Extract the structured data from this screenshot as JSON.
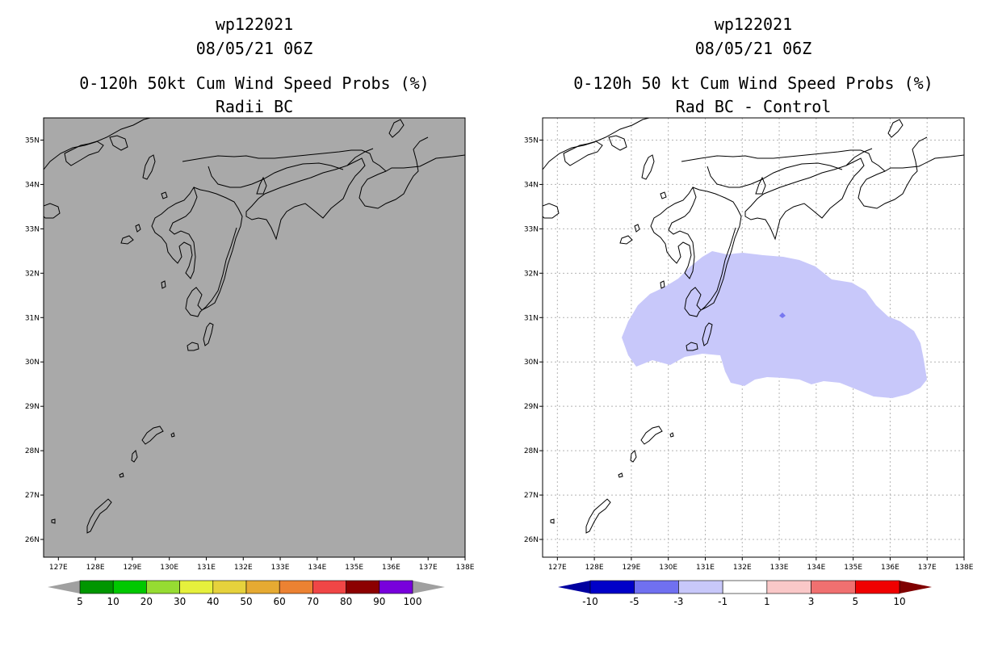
{
  "left_panel": {
    "storm_id": "wp122021",
    "datetime": "08/05/21 06Z",
    "title": "0-120h 50kt Cum Wind Speed Probs (%)",
    "subtitle": "Radii BC",
    "background_color": "#a9a9a9"
  },
  "right_panel": {
    "storm_id": "wp122021",
    "datetime": "08/05/21 06Z",
    "title": "0-120h 50 kt Cum Wind Speed Probs (%)",
    "subtitle": "Rad BC - Control",
    "background_color": "#ffffff",
    "shaded_region_color": "#c8c8fa",
    "shaded_region_label": "-3 to -1",
    "max_point_color": "#7878f0"
  },
  "map": {
    "lon_range": [
      126.6,
      138.0
    ],
    "lat_range": [
      25.6,
      35.5
    ],
    "lon_labels": [
      "127E",
      "128E",
      "129E",
      "130E",
      "131E",
      "132E",
      "133E",
      "134E",
      "135E",
      "136E",
      "137E",
      "138E"
    ],
    "lat_labels": [
      "35N",
      "34N",
      "33N",
      "32N",
      "31N",
      "30N",
      "29N",
      "28N",
      "27N",
      "26N"
    ]
  },
  "left_colorbar": {
    "labels": [
      "5",
      "10",
      "20",
      "30",
      "40",
      "50",
      "60",
      "70",
      "80",
      "90",
      "100"
    ],
    "colors": [
      "#009600",
      "#00c800",
      "#96dc32",
      "#e6f03c",
      "#e6d23c",
      "#e6aa32",
      "#ec8232",
      "#f04646",
      "#8c0000",
      "#7800dc"
    ],
    "end_color": "#a0a0a0"
  },
  "right_colorbar": {
    "labels": [
      "-10",
      "-5",
      "-3",
      "-1",
      "1",
      "3",
      "5",
      "10"
    ],
    "colors": [
      "#0000c8",
      "#7070f0",
      "#c8c8fa",
      "#ffffff",
      "#fac8c8",
      "#f07070",
      "#f00000"
    ],
    "low_end_color": "#0000a0",
    "high_end_color": "#800000"
  }
}
